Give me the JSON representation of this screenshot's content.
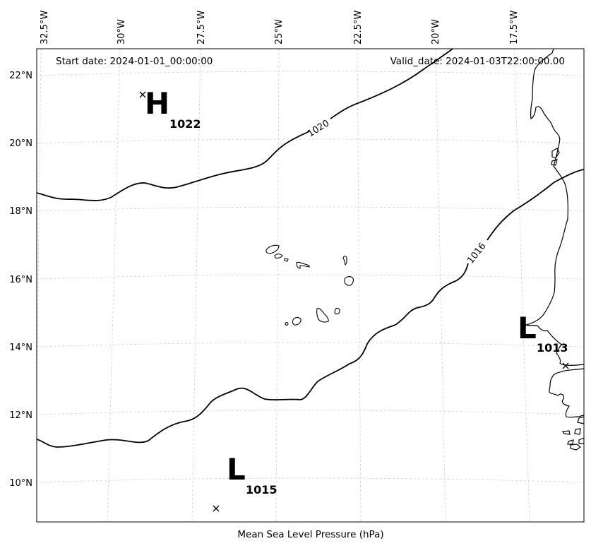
{
  "header": {
    "start_date": "Start date: 2024-01-01_00:00:00",
    "valid_date": "Valid_date: 2024-01-03T22:00:00.00"
  },
  "footer": {
    "caption": "Mean Sea Level Pressure (hPa)"
  },
  "axes": {
    "lon_labels": [
      "32.5°W",
      "30°W",
      "27.5°W",
      "25°W",
      "22.5°W",
      "20°W",
      "17.5°W"
    ],
    "lat_labels": [
      "22°N",
      "20°N",
      "18°N",
      "16°N",
      "14°N",
      "12°N",
      "10°N"
    ]
  },
  "isobars": [
    {
      "label": "1020"
    },
    {
      "label": "1016"
    }
  ],
  "pressure_centers": [
    {
      "type": "H",
      "value": "1022"
    },
    {
      "type": "L",
      "value": "1013"
    },
    {
      "type": "L",
      "value": "1015"
    }
  ]
}
